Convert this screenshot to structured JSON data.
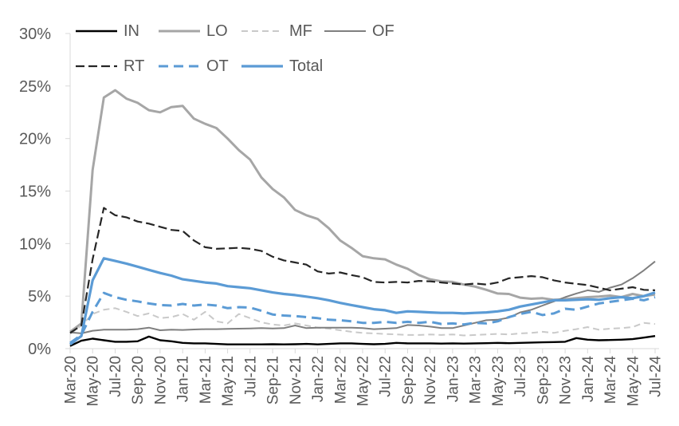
{
  "chart_data": {
    "type": "line",
    "title": "",
    "xlabel": "",
    "ylabel": "",
    "ylim": [
      0,
      30
    ],
    "grid": false,
    "legend_position": "top-left, two rows",
    "axis_color": "#d9d9d9",
    "tick_label_color": "#595959",
    "yticks": [
      {
        "value": 0,
        "label": "0%"
      },
      {
        "value": 5,
        "label": "5%"
      },
      {
        "value": 10,
        "label": "10%"
      },
      {
        "value": 15,
        "label": "15%"
      },
      {
        "value": 20,
        "label": "20%"
      },
      {
        "value": 25,
        "label": "25%"
      },
      {
        "value": 30,
        "label": "30%"
      }
    ],
    "x_tick_every": 2,
    "x": [
      "Mar-20",
      "Apr-20",
      "May-20",
      "Jun-20",
      "Jul-20",
      "Aug-20",
      "Sep-20",
      "Oct-20",
      "Nov-20",
      "Dec-20",
      "Jan-21",
      "Feb-21",
      "Mar-21",
      "Apr-21",
      "May-21",
      "Jun-21",
      "Jul-21",
      "Aug-21",
      "Sep-21",
      "Oct-21",
      "Nov-21",
      "Dec-21",
      "Jan-22",
      "Feb-22",
      "Mar-22",
      "Apr-22",
      "May-22",
      "Jun-22",
      "Jul-22",
      "Aug-22",
      "Sep-22",
      "Oct-22",
      "Nov-22",
      "Dec-22",
      "Jan-23",
      "Feb-23",
      "Mar-23",
      "Apr-23",
      "May-23",
      "Jun-23",
      "Jul-23",
      "Aug-23",
      "Sep-23",
      "Oct-23",
      "Nov-23",
      "Dec-23",
      "Jan-24",
      "Feb-24",
      "Mar-24",
      "Apr-24",
      "May-24",
      "Jun-24",
      "Jul-24"
    ],
    "series": [
      {
        "name": "IN",
        "color": "#000000",
        "dash": "solid",
        "width": 2.4,
        "values": [
          0.25,
          0.75,
          0.95,
          0.8,
          0.65,
          0.65,
          0.7,
          1.15,
          0.8,
          0.7,
          0.55,
          0.5,
          0.5,
          0.45,
          0.4,
          0.4,
          0.4,
          0.4,
          0.42,
          0.4,
          0.42,
          0.45,
          0.4,
          0.45,
          0.5,
          0.5,
          0.45,
          0.42,
          0.45,
          0.55,
          0.5,
          0.5,
          0.5,
          0.48,
          0.5,
          0.48,
          0.5,
          0.52,
          0.55,
          0.52,
          0.55,
          0.58,
          0.6,
          0.62,
          0.65,
          1.0,
          0.85,
          0.8,
          0.82,
          0.85,
          0.9,
          1.05,
          1.2
        ]
      },
      {
        "name": "LO",
        "color": "#a6a6a6",
        "dash": "solid",
        "width": 3,
        "values": [
          1.6,
          2.4,
          17.0,
          23.9,
          24.6,
          23.8,
          23.4,
          22.7,
          22.5,
          23.0,
          23.1,
          21.9,
          21.4,
          21.0,
          20.0,
          18.9,
          18.0,
          16.3,
          15.2,
          14.4,
          13.2,
          12.7,
          12.35,
          11.45,
          10.3,
          9.6,
          8.8,
          8.6,
          8.5,
          8.0,
          7.6,
          7.0,
          6.6,
          6.4,
          6.35,
          6.1,
          5.9,
          5.6,
          5.25,
          5.2,
          4.85,
          4.75,
          4.8,
          4.65,
          4.7,
          4.8,
          4.9,
          4.95,
          5.05,
          4.9,
          5.2,
          5.0,
          5.15
        ]
      },
      {
        "name": "MF",
        "color": "#c9c9c9",
        "dash": "8,5",
        "width": 2,
        "values": [
          1.4,
          2.2,
          3.3,
          3.7,
          3.85,
          3.5,
          3.1,
          3.35,
          2.9,
          3.0,
          3.3,
          2.75,
          3.5,
          2.6,
          2.4,
          3.3,
          2.9,
          2.5,
          2.3,
          2.2,
          2.4,
          2.2,
          2.0,
          1.9,
          1.75,
          1.6,
          1.5,
          1.45,
          1.4,
          1.35,
          1.3,
          1.3,
          1.35,
          1.3,
          1.35,
          1.25,
          1.3,
          1.35,
          1.4,
          1.35,
          1.45,
          1.5,
          1.6,
          1.5,
          1.7,
          1.85,
          2.05,
          1.8,
          1.9,
          1.95,
          2.05,
          2.45,
          2.35
        ]
      },
      {
        "name": "OF",
        "color": "#7f7f7f",
        "dash": "solid",
        "width": 2,
        "values": [
          1.55,
          1.45,
          1.7,
          1.8,
          1.8,
          1.8,
          1.85,
          2.0,
          1.75,
          1.8,
          1.78,
          1.82,
          1.85,
          1.85,
          1.88,
          1.9,
          1.92,
          1.95,
          1.92,
          1.95,
          2.2,
          1.95,
          2.0,
          2.0,
          2.0,
          2.0,
          1.95,
          1.85,
          1.9,
          1.95,
          2.25,
          2.2,
          2.1,
          1.95,
          1.95,
          2.2,
          2.45,
          2.7,
          2.75,
          2.95,
          3.45,
          3.7,
          4.1,
          4.5,
          4.9,
          5.25,
          5.55,
          5.4,
          5.8,
          6.1,
          6.7,
          7.45,
          8.3
        ]
      },
      {
        "name": "RT",
        "color": "#262626",
        "dash": "11,5",
        "width": 2.2,
        "values": [
          1.5,
          2.2,
          8.5,
          13.4,
          12.7,
          12.5,
          12.1,
          11.9,
          11.6,
          11.3,
          11.2,
          10.3,
          9.65,
          9.5,
          9.55,
          9.6,
          9.5,
          9.3,
          8.75,
          8.4,
          8.2,
          8.0,
          7.35,
          7.15,
          7.25,
          7.0,
          6.8,
          6.35,
          6.3,
          6.35,
          6.3,
          6.45,
          6.4,
          6.3,
          6.2,
          6.1,
          6.2,
          6.1,
          6.3,
          6.7,
          6.8,
          6.9,
          6.8,
          6.5,
          6.3,
          6.17,
          6.05,
          5.8,
          5.55,
          5.7,
          5.85,
          5.6,
          5.55
        ]
      },
      {
        "name": "OT",
        "color": "#5b9bd5",
        "dash": "12,7",
        "width": 3,
        "values": [
          0.55,
          1.3,
          3.5,
          5.3,
          4.9,
          4.65,
          4.5,
          4.3,
          4.15,
          4.1,
          4.25,
          4.1,
          4.2,
          4.1,
          3.85,
          3.95,
          3.9,
          3.6,
          3.25,
          3.15,
          3.1,
          3.0,
          2.9,
          2.75,
          2.7,
          2.6,
          2.45,
          2.45,
          2.55,
          2.45,
          2.55,
          2.45,
          2.55,
          2.35,
          2.4,
          2.3,
          2.45,
          2.4,
          2.6,
          3.0,
          3.3,
          3.5,
          3.2,
          3.35,
          3.8,
          3.7,
          4.0,
          4.3,
          4.45,
          4.6,
          4.75,
          4.6,
          4.9
        ]
      },
      {
        "name": "Total",
        "color": "#5b9bd5",
        "dash": "solid",
        "width": 3.2,
        "values": [
          0.4,
          1.2,
          6.5,
          8.6,
          8.35,
          8.1,
          7.8,
          7.5,
          7.2,
          6.95,
          6.6,
          6.45,
          6.3,
          6.2,
          5.95,
          5.85,
          5.75,
          5.55,
          5.35,
          5.2,
          5.1,
          4.95,
          4.8,
          4.6,
          4.35,
          4.15,
          3.95,
          3.75,
          3.65,
          3.4,
          3.55,
          3.5,
          3.45,
          3.4,
          3.4,
          3.35,
          3.4,
          3.45,
          3.55,
          3.7,
          4.0,
          4.2,
          4.4,
          4.6,
          4.6,
          4.65,
          4.7,
          4.65,
          4.8,
          4.9,
          4.8,
          5.0,
          5.35
        ]
      }
    ]
  },
  "legend": {
    "row1_indices": [
      0,
      1,
      2,
      3
    ],
    "row2_indices": [
      4,
      5,
      6
    ]
  }
}
